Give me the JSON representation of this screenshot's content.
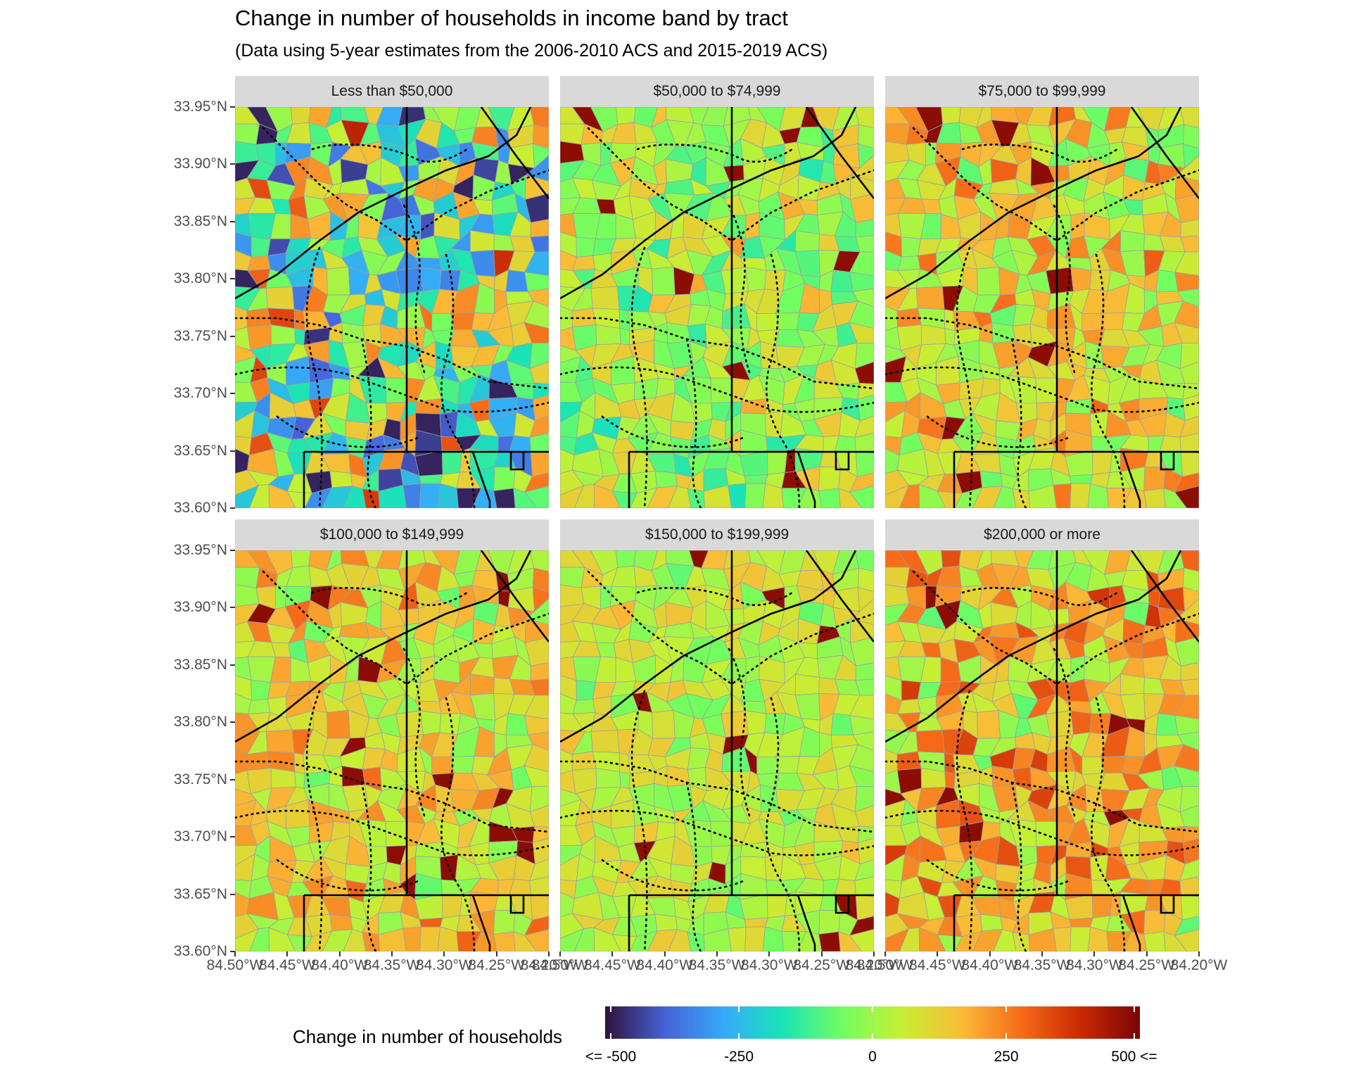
{
  "title": "Change in number of households in income band by tract",
  "subtitle": "(Data using 5-year estimates from the 2006-2010 ACS and 2015-2019 ACS)",
  "panels": [
    {
      "label": "Less than $50,000",
      "bias": -0.05,
      "spread": 0.95
    },
    {
      "label": "$50,000 to $74,999",
      "bias": 0.05,
      "spread": 0.42
    },
    {
      "label": "$75,000 to $99,999",
      "bias": 0.22,
      "spread": 0.45
    },
    {
      "label": "$100,000 to $149,999",
      "bias": 0.22,
      "spread": 0.42
    },
    {
      "label": "$150,000 to $199,999",
      "bias": 0.1,
      "spread": 0.28
    },
    {
      "label": "$200,000 or more",
      "bias": 0.32,
      "spread": 0.5
    }
  ],
  "axes": {
    "y_labels": [
      "33.95°N",
      "33.90°N",
      "33.85°N",
      "33.80°N",
      "33.75°N",
      "33.70°N",
      "33.65°N",
      "33.60°N"
    ],
    "y_values": [
      33.95,
      33.9,
      33.85,
      33.8,
      33.75,
      33.7,
      33.65,
      33.6
    ],
    "x_labels": [
      "84.50°W",
      "84.45°W",
      "84.40°W",
      "84.35°W",
      "84.30°W",
      "84.25°W",
      "84.20°W"
    ],
    "x_values": [
      -84.5,
      -84.45,
      -84.4,
      -84.35,
      -84.3,
      -84.25,
      -84.2
    ],
    "lat_range": [
      33.6,
      33.95
    ],
    "lon_range": [
      -84.5,
      -84.2
    ]
  },
  "legend": {
    "title": "Change in number of households",
    "tick_labels": [
      "<= -500",
      "-250",
      "0",
      "250",
      "500 <="
    ],
    "tick_values": [
      -500,
      -250,
      0,
      250,
      500
    ],
    "colors": [
      "#30123b",
      "#4662d7",
      "#36aaf9",
      "#1ae4b6",
      "#72fe5e",
      "#c7ef34",
      "#fabb36",
      "#f66b19",
      "#ca2a04",
      "#7a0403"
    ]
  }
}
